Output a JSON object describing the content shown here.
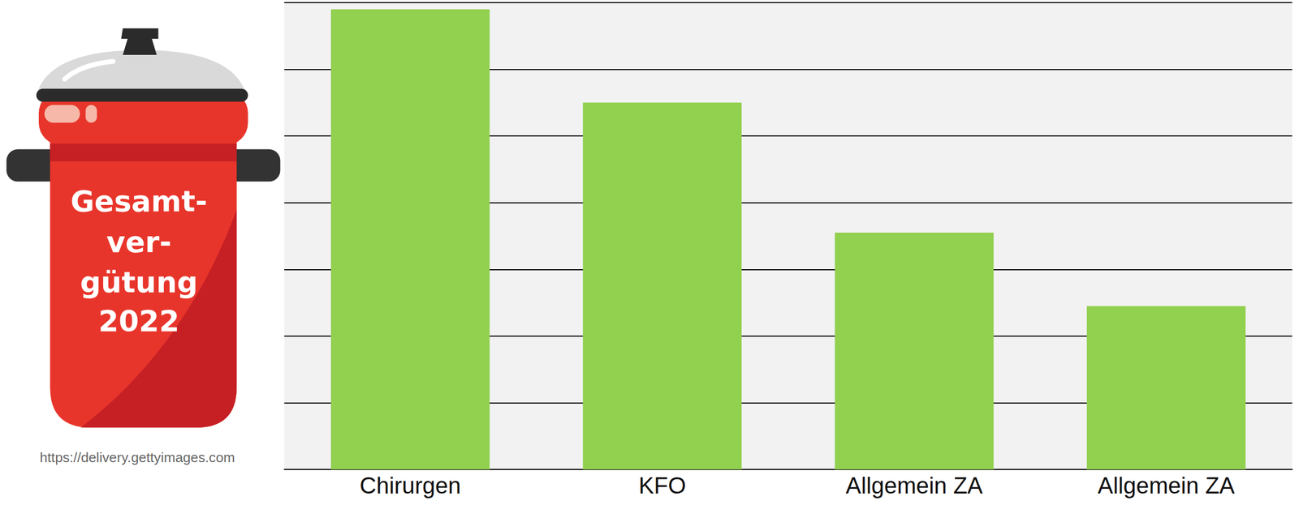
{
  "chart_data": {
    "type": "bar",
    "categories": [
      "Chirurgen",
      "KFO",
      "Allgemein ZA",
      "Allgemein ZA"
    ],
    "values": [
      6.9,
      5.5,
      3.55,
      2.45
    ],
    "color": "#92d050",
    "ylim": [
      0,
      7
    ],
    "yticks": [
      0,
      1,
      2,
      3,
      4,
      5,
      6,
      7
    ],
    "grid": true,
    "tick_labels": "x",
    "annotations": [
      "Gesamt-",
      "ver-",
      "gütung",
      "2022"
    ],
    "source": "https://delivery.gettyimages.com"
  }
}
